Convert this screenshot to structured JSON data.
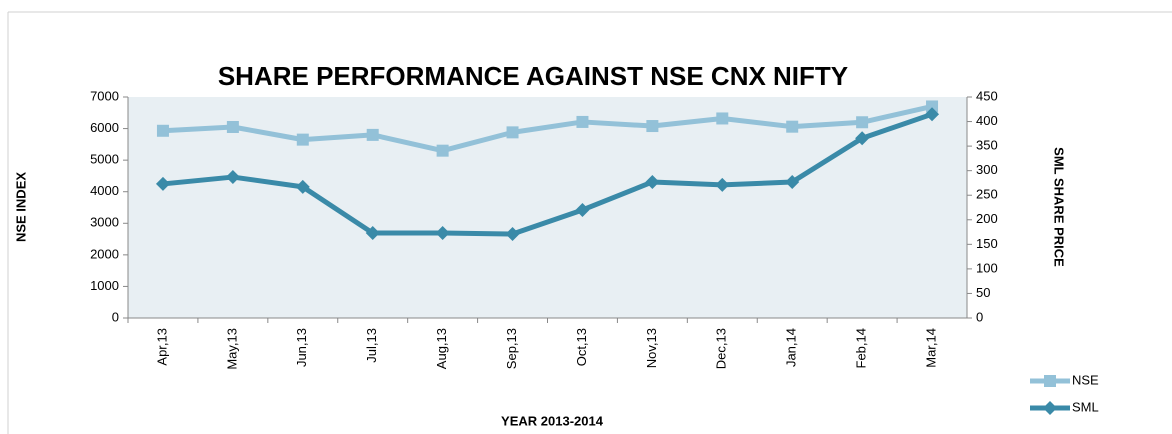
{
  "chart_data": {
    "type": "line",
    "title": "SHARE PERFORMANCE AGAINST NSE CNX NIFTY",
    "x_label": "YEAR 2013-2014",
    "y_label": "NSE INDEX",
    "y2_label": "SML SHARE PRICE",
    "categories": [
      "Apr,13",
      "May,13",
      "Jun,13",
      "Jul,13",
      "Aug,13",
      "Sep,13",
      "Oct,13",
      "Nov,13",
      "Dec,13",
      "Jan,14",
      "Feb,14",
      "Mar,14"
    ],
    "series": [
      {
        "name": "NSE",
        "color": "#93c1d8",
        "marker": "square",
        "values": [
          5930,
          6050,
          5650,
          5800,
          5300,
          5880,
          6210,
          6080,
          6320,
          6060,
          6200,
          6700
        ]
      },
      {
        "name": "SML",
        "color": "#3a8aa8",
        "marker": "diamond",
        "axis": "y2",
        "values": [
          273,
          287,
          267,
          173,
          173,
          171,
          220,
          277,
          271,
          277,
          366,
          415
        ]
      }
    ],
    "ylim": [
      0,
      7000
    ],
    "yticks": [
      0,
      1000,
      2000,
      3000,
      4000,
      5000,
      6000,
      7000
    ],
    "y2lim": [
      0,
      450
    ],
    "y2ticks": [
      0,
      50,
      100,
      150,
      200,
      250,
      300,
      350,
      400,
      450
    ],
    "legend": "bottom-right"
  }
}
